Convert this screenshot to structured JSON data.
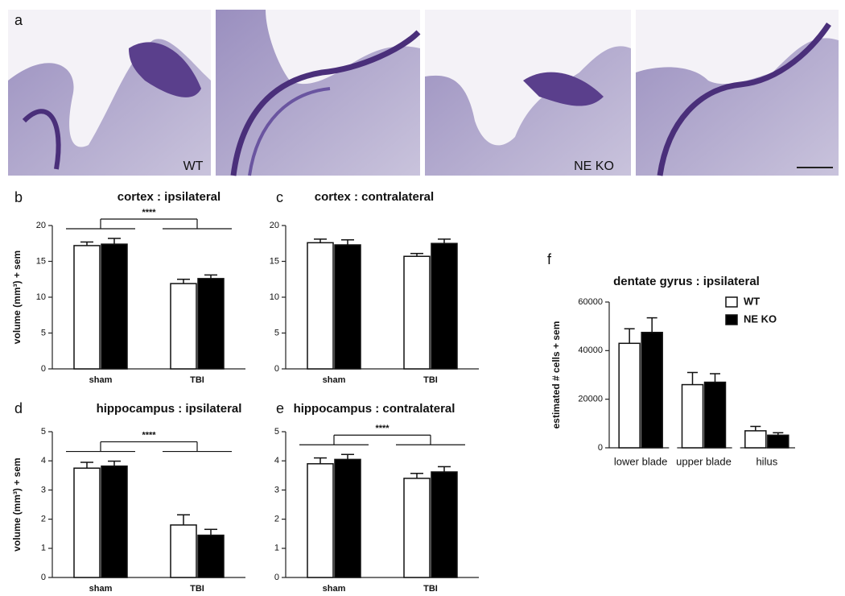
{
  "figure": {
    "panel_labels": [
      "a",
      "b",
      "c",
      "d",
      "e",
      "f"
    ],
    "image_labels": [
      "WT",
      "NE KO"
    ]
  },
  "chart_data": [
    {
      "type": "bar",
      "title": "cortex : ipsilateral",
      "y_label": "volume (mm³) + sem",
      "categories": [
        "sham",
        "TBI"
      ],
      "series": [
        {
          "color": "#ffffff",
          "values": [
            17.2,
            11.9
          ],
          "errors": [
            0.5,
            0.6
          ]
        },
        {
          "color": "#000000",
          "values": [
            17.4,
            12.6
          ],
          "errors": [
            0.8,
            0.5
          ]
        }
      ],
      "ylim": [
        0,
        20
      ],
      "yticks": [
        0,
        5,
        10,
        15,
        20
      ],
      "annotation": "****"
    },
    {
      "type": "bar",
      "title": "cortex : contralateral",
      "categories": [
        "sham",
        "TBI"
      ],
      "series": [
        {
          "color": "#ffffff",
          "values": [
            17.6,
            15.7
          ],
          "errors": [
            0.5,
            0.4
          ]
        },
        {
          "color": "#000000",
          "values": [
            17.3,
            17.5
          ],
          "errors": [
            0.7,
            0.6
          ]
        }
      ],
      "ylim": [
        0,
        20
      ],
      "yticks": [
        0,
        5,
        10,
        15,
        20
      ]
    },
    {
      "type": "bar",
      "title": "hippocampus : ipsilateral",
      "y_label": "volume (mm³) + sem",
      "categories": [
        "sham",
        "TBI"
      ],
      "series": [
        {
          "color": "#ffffff",
          "values": [
            3.75,
            1.8
          ],
          "errors": [
            0.2,
            0.35
          ]
        },
        {
          "color": "#000000",
          "values": [
            3.82,
            1.45
          ],
          "errors": [
            0.17,
            0.2
          ]
        }
      ],
      "ylim": [
        0,
        5
      ],
      "yticks": [
        0,
        1,
        2,
        3,
        4,
        5
      ],
      "annotation": "****"
    },
    {
      "type": "bar",
      "title": "hippocampus : contralateral",
      "categories": [
        "sham",
        "TBI"
      ],
      "series": [
        {
          "color": "#ffffff",
          "values": [
            3.9,
            3.4
          ],
          "errors": [
            0.2,
            0.17
          ]
        },
        {
          "color": "#000000",
          "values": [
            4.05,
            3.62
          ],
          "errors": [
            0.17,
            0.18
          ]
        }
      ],
      "ylim": [
        0,
        5
      ],
      "yticks": [
        0,
        1,
        2,
        3,
        4,
        5
      ],
      "annotation": "****"
    },
    {
      "type": "bar",
      "title": "dentate gyrus : ipsilateral",
      "y_label": "estimated # cells + sem",
      "categories": [
        "lower blade",
        "upper blade",
        "hilus"
      ],
      "series": [
        {
          "name": "WT",
          "color": "#ffffff",
          "values": [
            43000,
            26000,
            7000
          ],
          "errors": [
            6000,
            5000,
            1800
          ]
        },
        {
          "name": "NE KO",
          "color": "#000000",
          "values": [
            47500,
            27000,
            5200
          ],
          "errors": [
            6000,
            3500,
            1000
          ]
        }
      ],
      "ylim": [
        0,
        60000
      ],
      "yticks": [
        0,
        20000,
        40000,
        60000
      ],
      "legend": "upper right"
    }
  ]
}
